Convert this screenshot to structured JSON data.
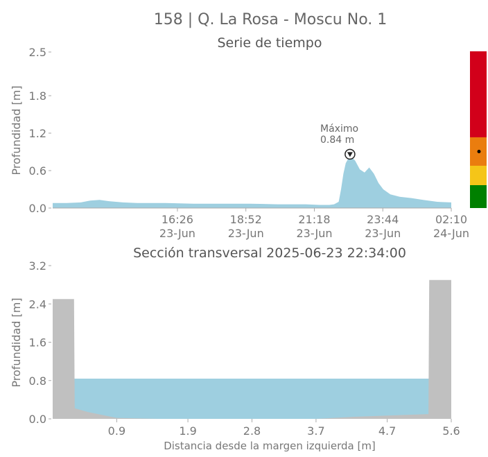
{
  "figure": {
    "title": "158 | Q. La Rosa - Moscu No. 1"
  },
  "chart_data": [
    {
      "type": "area",
      "title": "Serie de tiempo",
      "xlabel": "",
      "ylabel": "Profundidad [m]",
      "ylim": [
        0.0,
        2.5
      ],
      "yticks": [
        "0.0",
        "0.6",
        "1.2",
        "1.8",
        "2.5"
      ],
      "xlim": [
        "2025-06-23T12:00",
        "2025-06-24T02:10"
      ],
      "xticks": [
        {
          "time": "2025-06-23T16:26",
          "line1": "16:26",
          "line2": "23-Jun"
        },
        {
          "time": "2025-06-23T18:52",
          "line1": "18:52",
          "line2": "23-Jun"
        },
        {
          "time": "2025-06-23T21:18",
          "line1": "21:18",
          "line2": "23-Jun"
        },
        {
          "time": "2025-06-23T23:44",
          "line1": "23:44",
          "line2": "23-Jun"
        },
        {
          "time": "2025-06-24T02:10",
          "line1": "02:10",
          "line2": "24-Jun"
        }
      ],
      "grid": false,
      "fill_color": "#9ecfe0",
      "series": [
        {
          "x": [
            "2025-06-23T12:00",
            "2025-06-23T12:30",
            "2025-06-23T13:00",
            "2025-06-23T13:20",
            "2025-06-23T13:40",
            "2025-06-23T14:00",
            "2025-06-23T14:30",
            "2025-06-23T15:00",
            "2025-06-23T16:00",
            "2025-06-23T17:00",
            "2025-06-23T18:00",
            "2025-06-23T19:00",
            "2025-06-23T20:00",
            "2025-06-23T21:00",
            "2025-06-23T21:30",
            "2025-06-23T21:50",
            "2025-06-23T22:00",
            "2025-06-23T22:10",
            "2025-06-23T22:15",
            "2025-06-23T22:20",
            "2025-06-23T22:25",
            "2025-06-23T22:34",
            "2025-06-23T22:45",
            "2025-06-23T22:55",
            "2025-06-23T23:05",
            "2025-06-23T23:15",
            "2025-06-23T23:25",
            "2025-06-23T23:35",
            "2025-06-23T23:45",
            "2025-06-24T00:00",
            "2025-06-24T00:20",
            "2025-06-24T00:45",
            "2025-06-24T01:10",
            "2025-06-24T01:40",
            "2025-06-24T02:10"
          ],
          "values": [
            0.08,
            0.08,
            0.09,
            0.12,
            0.13,
            0.11,
            0.09,
            0.08,
            0.08,
            0.07,
            0.07,
            0.07,
            0.06,
            0.06,
            0.05,
            0.05,
            0.06,
            0.1,
            0.3,
            0.55,
            0.72,
            0.84,
            0.76,
            0.62,
            0.57,
            0.65,
            0.55,
            0.4,
            0.3,
            0.22,
            0.18,
            0.16,
            0.13,
            0.1,
            0.09
          ]
        }
      ],
      "annotation": {
        "time": "2025-06-23T22:34",
        "value": 0.84,
        "label1": "Máximo",
        "label2": "0.84 m"
      }
    },
    {
      "type": "area",
      "title": "Sección transversal 2025-06-23 22:34:00",
      "xlabel": "Distancia desde la margen izquierda [m]",
      "ylabel": "Profundidad [m]",
      "xlim": [
        0.0,
        5.6
      ],
      "ylim": [
        0.0,
        3.2
      ],
      "xticks": [
        "0.9",
        "1.9",
        "2.8",
        "3.7",
        "4.7",
        "5.6"
      ],
      "yticks": [
        "0.0",
        "0.8",
        "1.6",
        "2.4",
        "3.2"
      ],
      "water_level": 0.84,
      "water_color": "#9ecfe0",
      "bed_color": "#c0c0c0",
      "bed_profile": [
        {
          "x": 0.0,
          "y": 2.5
        },
        {
          "x": 0.3,
          "y": 2.5
        },
        {
          "x": 0.31,
          "y": 0.22
        },
        {
          "x": 0.5,
          "y": 0.14
        },
        {
          "x": 0.9,
          "y": 0.02
        },
        {
          "x": 1.5,
          "y": 0.0
        },
        {
          "x": 2.2,
          "y": 0.0
        },
        {
          "x": 3.7,
          "y": 0.0
        },
        {
          "x": 4.2,
          "y": 0.04
        },
        {
          "x": 4.9,
          "y": 0.08
        },
        {
          "x": 5.28,
          "y": 0.1
        },
        {
          "x": 5.29,
          "y": 2.9
        },
        {
          "x": 5.6,
          "y": 2.9
        }
      ]
    }
  ],
  "alert_bar": {
    "levels": [
      {
        "name": "green",
        "color": "#008000"
      },
      {
        "name": "yellow",
        "color": "#f5c518"
      },
      {
        "name": "orange",
        "color": "#ea7d0e"
      },
      {
        "name": "red",
        "color": "#d2001a"
      }
    ],
    "current_level": "orange"
  }
}
